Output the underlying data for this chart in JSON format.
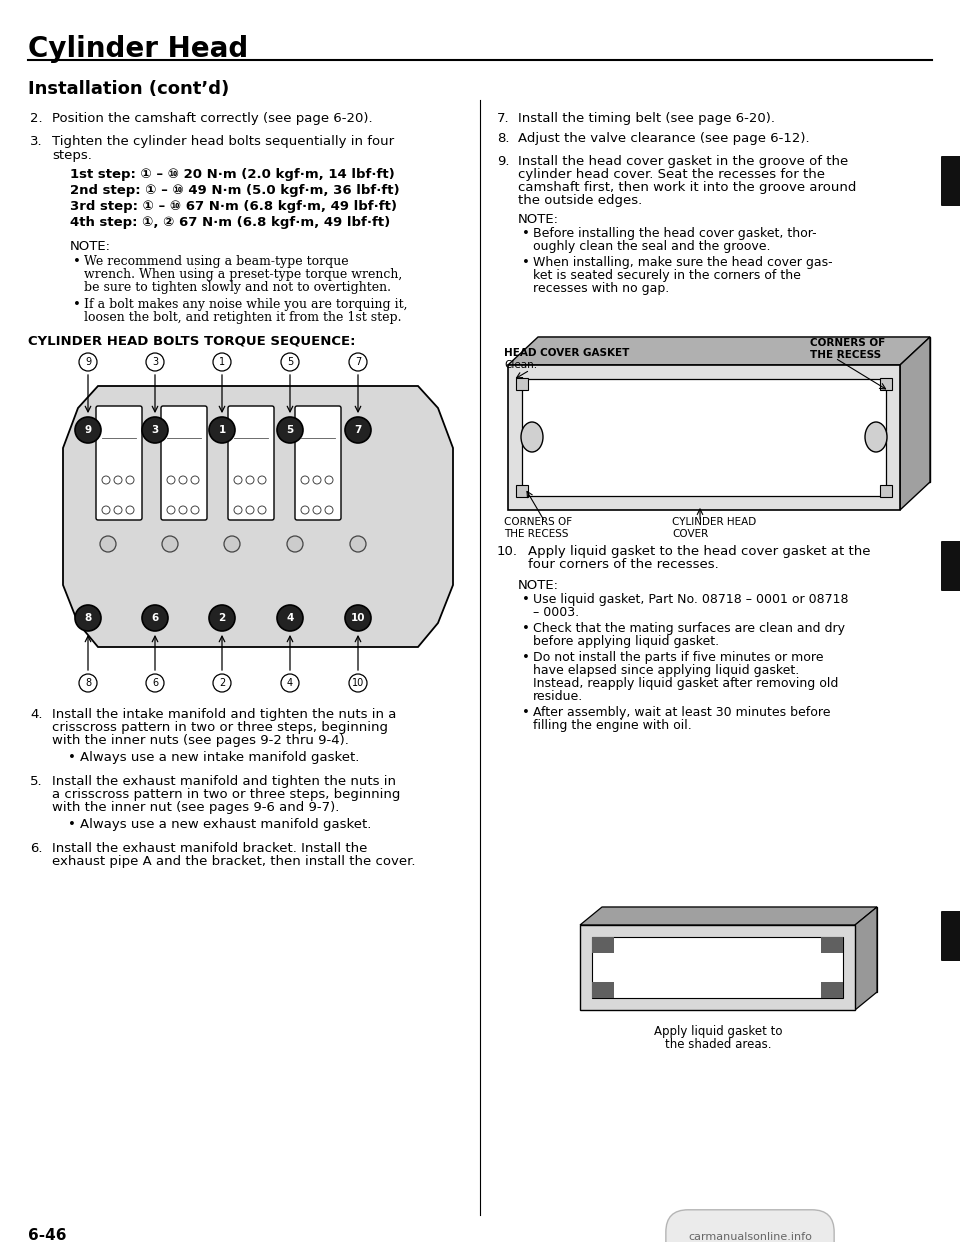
{
  "page_title": "Cylinder Head",
  "section_title": "Installation (cont’d)",
  "bg_color": "#ffffff",
  "text_color": "#000000",
  "torque_steps": [
    [
      "1st step: ",
      "① – ⑩",
      " 20 N·m (2.0 kgf·m, 14 lbf·ft)"
    ],
    [
      "2nd step: ",
      "① – ⑩",
      " 49 N·m (5.0 kgf·m, 36 lbf·ft)"
    ],
    [
      "3rd step: ",
      "① – ⑩",
      " 67 N·m (6.8 kgf·m, 49 lbf·ft)"
    ],
    [
      "4th step: ",
      "①, ②",
      " 67 N·m (6.8 kgf·m, 49 lbf·ft)"
    ]
  ],
  "note_bullets_left_lines": [
    [
      "We recommend using a beam-type torque wrench. When using a preset-type torque wrench,",
      "be sure to tighten slowly and not to overtighten."
    ],
    [
      "If a bolt makes any noise while you are torquing it,",
      "loosen the bolt, and retighten it from the 1st step."
    ]
  ],
  "top_bolt_labels": [
    "9",
    "3",
    "1",
    "5",
    "7"
  ],
  "bot_bolt_labels": [
    "8",
    "6",
    "2",
    "4",
    "10"
  ],
  "page_num": "6-46",
  "watermark": "carmanualsonline.info",
  "fig_caption_lines": [
    "Apply liquid gasket to",
    "the shaded areas."
  ]
}
